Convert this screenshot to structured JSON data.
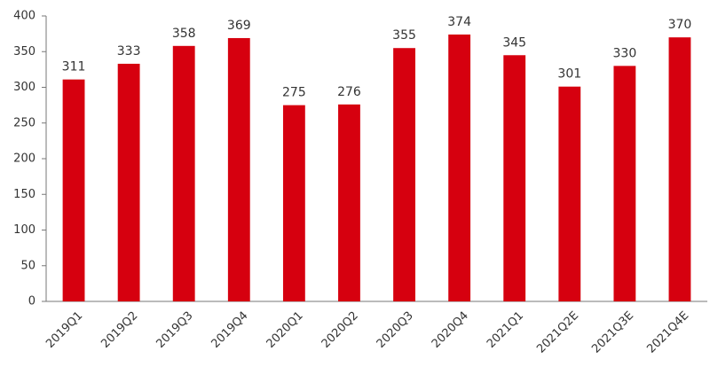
{
  "chart_data": {
    "type": "bar",
    "categories": [
      "2019Q1",
      "2019Q2",
      "2019Q3",
      "2019Q4",
      "2020Q1",
      "2020Q2",
      "2020Q3",
      "2020Q4",
      "2021Q1",
      "2021Q2E",
      "2021Q3E",
      "2021Q4E"
    ],
    "values": [
      311,
      333,
      358,
      369,
      275,
      276,
      355,
      374,
      345,
      301,
      330,
      370
    ],
    "color": "#d6000f",
    "ylim": [
      0,
      400
    ],
    "yticks": [
      0,
      50,
      100,
      150,
      200,
      250,
      300,
      350,
      400
    ],
    "grid": false
  }
}
